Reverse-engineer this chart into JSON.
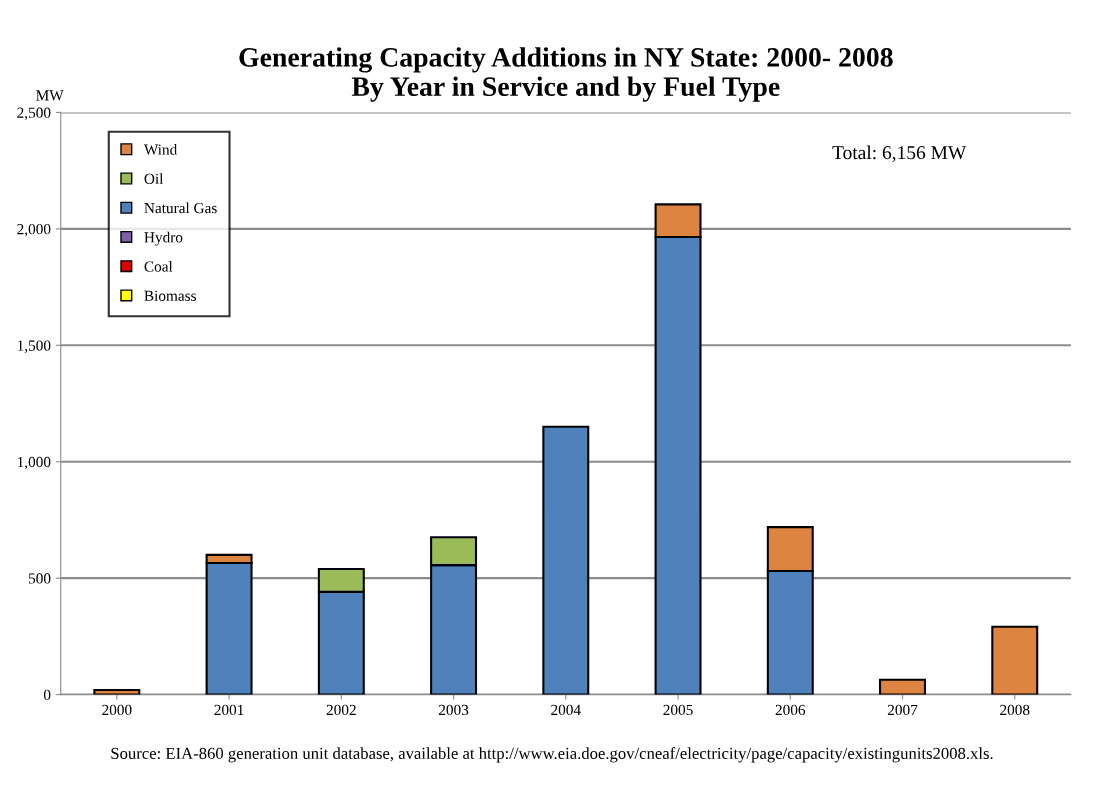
{
  "chart_data": {
    "type": "bar",
    "stacked": true,
    "title": "Generating Capacity Additions in NY State: 2000- 2008\nBy Year in Service and by Fuel Type",
    "ylabel": "MW",
    "categories": [
      "2000",
      "2001",
      "2002",
      "2003",
      "2004",
      "2005",
      "2006",
      "2007",
      "2008"
    ],
    "series": [
      {
        "name": "Biomass",
        "color": "#ffff00",
        "values": [
          null,
          null,
          null,
          null,
          null,
          null,
          null,
          null,
          null
        ]
      },
      {
        "name": "Coal",
        "color": "#e00000",
        "values": [
          null,
          null,
          null,
          null,
          null,
          null,
          null,
          null,
          null
        ]
      },
      {
        "name": "Hydro",
        "color": "#7f5fa8",
        "values": [
          null,
          null,
          null,
          null,
          null,
          null,
          null,
          null,
          null
        ]
      },
      {
        "name": "Natural Gas",
        "color": "#4f81bd",
        "values": [
          null,
          565,
          441,
          556,
          1150,
          1965,
          531,
          null,
          null
        ]
      },
      {
        "name": "Oil",
        "color": "#9bbb59",
        "values": [
          null,
          null,
          98,
          120,
          null,
          null,
          null,
          null,
          null
        ]
      },
      {
        "name": "Wind",
        "color": "#dd8441",
        "values": [
          20,
          35,
          null,
          null,
          null,
          140,
          188,
          64,
          291
        ]
      }
    ],
    "ylim": [
      0,
      2500
    ],
    "yticks": [
      {
        "value": 0,
        "label": "0"
      },
      {
        "value": 500,
        "label": "500"
      },
      {
        "value": 1000,
        "label": "1,000"
      },
      {
        "value": 1500,
        "label": "1,500"
      },
      {
        "value": 2000,
        "label": "2,000"
      },
      {
        "value": 2500,
        "label": "2,500"
      }
    ],
    "grid": "y",
    "legend": "top left",
    "annotations": [
      "Total: 6,156 MW",
      "Source: EIA-860 generation unit database, available at http://www.eia.doe.gov/cneaf/electricity/page/capacity/existingunits2008.xls."
    ]
  }
}
